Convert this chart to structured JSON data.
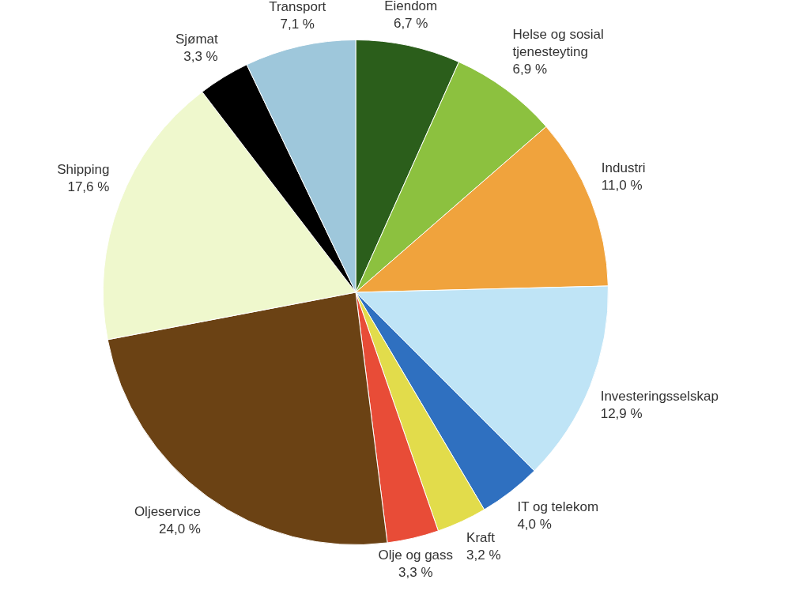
{
  "chart_data": {
    "type": "pie",
    "categories": [
      "Eiendom",
      "Helse og sosial tjenesteyting",
      "Industri",
      "Investeringsselskap",
      "IT og telekom",
      "Kraft",
      "Olje og gass",
      "Oljeservice",
      "Shipping",
      "Sjømat",
      "Transport"
    ],
    "values": [
      6.7,
      6.9,
      11.0,
      12.9,
      4.0,
      3.2,
      3.3,
      24.0,
      17.6,
      3.3,
      7.1
    ],
    "value_labels": [
      "6,7 %",
      "6,9 %",
      "11,0 %",
      "12,9 %",
      "4,0 %",
      "3,2 %",
      "3,3 %",
      "24,0 %",
      "17,6 %",
      "3,3 %",
      "7,1 %"
    ],
    "colors": [
      "#2b5e1b",
      "#8cc13f",
      "#f0a33d",
      "#bfe4f6",
      "#2f70c0",
      "#e2dc4b",
      "#e84c37",
      "#6b4214",
      "#eff8cd",
      "#000000",
      "#9ec7db"
    ],
    "legend": false
  }
}
